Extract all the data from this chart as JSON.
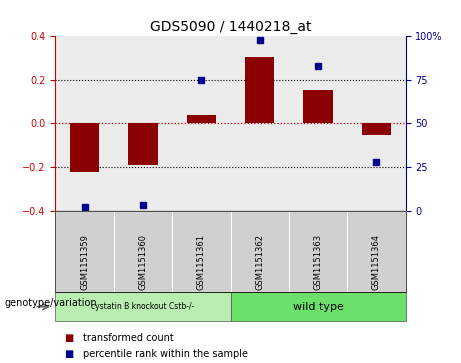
{
  "title": "GDS5090 / 1440218_at",
  "samples": [
    "GSM1151359",
    "GSM1151360",
    "GSM1151361",
    "GSM1151362",
    "GSM1151363",
    "GSM1151364"
  ],
  "transformed_counts": [
    -0.225,
    -0.19,
    0.04,
    0.305,
    0.155,
    -0.055
  ],
  "percentile_ranks": [
    2,
    3,
    75,
    98,
    83,
    28
  ],
  "ylim_left": [
    -0.4,
    0.4
  ],
  "ylim_right": [
    0,
    100
  ],
  "yticks_left": [
    -0.4,
    -0.2,
    0.0,
    0.2,
    0.4
  ],
  "yticks_right": [
    0,
    25,
    50,
    75,
    100
  ],
  "bar_color": "#8B0000",
  "dot_color": "#00008B",
  "hline_color": "#cc0000",
  "dotted_line_color": "#000000",
  "bg_color": "#ffffff",
  "plot_bg_color": "#ececec",
  "sample_box_color": "#d0d0d0",
  "group1_color": "#b8eeb0",
  "group2_color": "#6be06b",
  "legend_bar_label": "transformed count",
  "legend_dot_label": "percentile rank within the sample",
  "genotype_label": "genotype/variation",
  "group1_label": "cystatin B knockout Cstb-/-",
  "group2_label": "wild type",
  "title_fontsize": 10,
  "tick_fontsize": 7,
  "sample_fontsize": 6,
  "legend_fontsize": 7,
  "genotype_fontsize": 7
}
